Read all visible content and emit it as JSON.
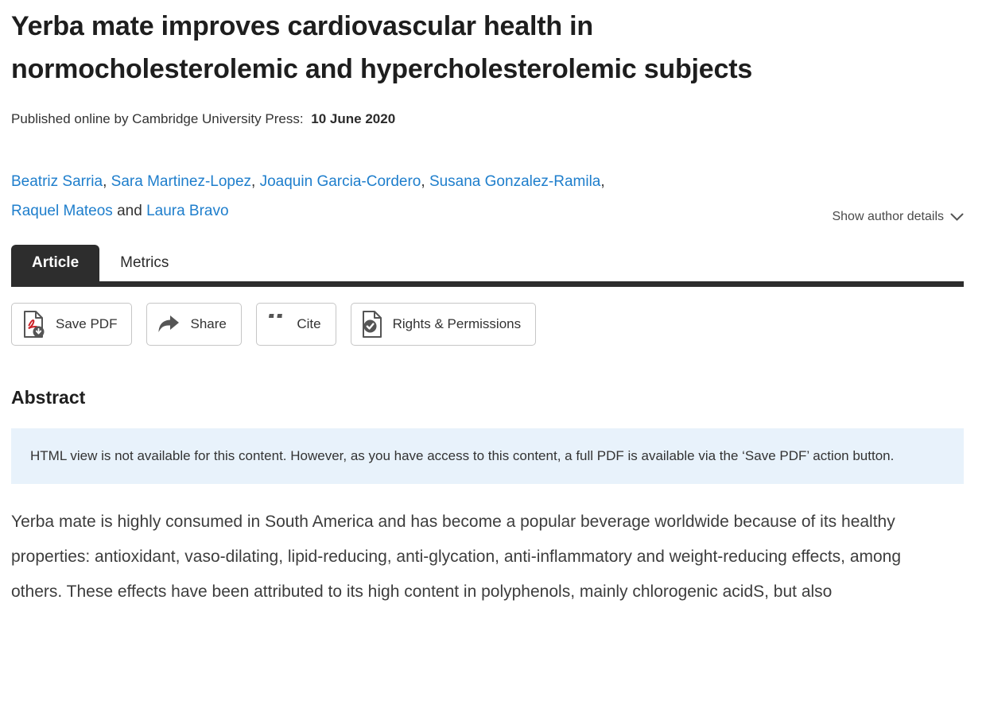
{
  "header": {
    "title": "Yerba mate improves cardiovascular health in normocholesterolemic and hypercholesterolemic subjects",
    "published_label": "Published online by Cambridge University Press:",
    "published_date": "10 June 2020"
  },
  "authors": {
    "list": [
      {
        "name": "Beatriz Sarria",
        "sep": ",  "
      },
      {
        "name": "Sara Martinez-Lopez",
        "sep": ",  "
      },
      {
        "name": "Joaquin Garcia-Cordero",
        "sep": ",  "
      },
      {
        "name": "Susana Gonzalez-Ramila",
        "sep": ",\n"
      },
      {
        "name": "Raquel Mateos",
        "sep": " and "
      },
      {
        "name": "Laura Bravo",
        "sep": ""
      }
    ],
    "show_details_label": "Show author details"
  },
  "tabs": [
    {
      "label": "Article",
      "active": true
    },
    {
      "label": "Metrics",
      "active": false
    }
  ],
  "toolbar": {
    "save_pdf_label": "Save PDF",
    "share_label": "Share",
    "cite_label": "Cite",
    "cite_glyph": "“",
    "rights_label": "Rights & Permissions"
  },
  "abstract": {
    "heading": "Abstract",
    "notice": "HTML view is not available for this content. However, as you have access to this content, a full PDF is available via the ‘Save PDF’ action button.",
    "body": "Yerba mate is highly consumed in South America and has become a popular beverage worldwide because of its healthy properties: antioxidant, vaso-dilating, lipid-reducing, anti-glycation, anti-inflammatory and weight-reducing effects, among others. These effects have been attributed to its high content in polyphenols, mainly chlorogenic acidS, but also"
  },
  "colors": {
    "link_blue": "#1e7ecc",
    "tab_dark": "#2d2d2d",
    "notice_bg": "#e8f2fb",
    "pdf_red": "#cc2127",
    "icon_gray": "#555555"
  }
}
